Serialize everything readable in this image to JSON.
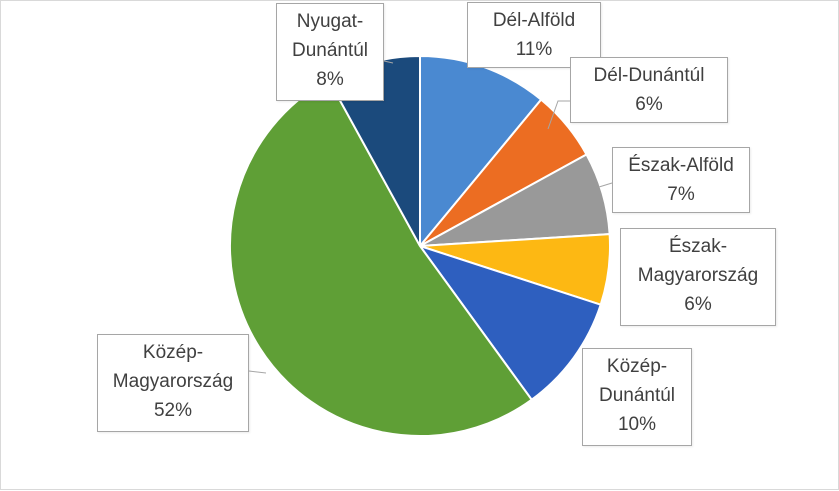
{
  "chart_data": {
    "type": "pie",
    "title": "",
    "legend": "none",
    "slices": [
      {
        "label_lines": [
          "Dél-Alföld"
        ],
        "pct_label": "11%",
        "value": 11,
        "color": "#4a89d1"
      },
      {
        "label_lines": [
          "Dél-Dunántúl"
        ],
        "pct_label": "6%",
        "value": 6,
        "color": "#ec6d22"
      },
      {
        "label_lines": [
          "Észak-Alföld"
        ],
        "pct_label": "7%",
        "value": 7,
        "color": "#999999"
      },
      {
        "label_lines": [
          "Észak-",
          "Magyarország"
        ],
        "pct_label": "6%",
        "value": 6,
        "color": "#fdb813"
      },
      {
        "label_lines": [
          "Közép-",
          "Dunántúl"
        ],
        "pct_label": "10%",
        "value": 10,
        "color": "#2e5fbf"
      },
      {
        "label_lines": [
          "Közép-",
          "Magyarország"
        ],
        "pct_label": "52%",
        "value": 52,
        "color": "#5f9f36"
      },
      {
        "label_lines": [
          "Nyugat-",
          "Dunántúl"
        ],
        "pct_label": "8%",
        "value": 8,
        "color": "#1b4a7c"
      }
    ]
  }
}
